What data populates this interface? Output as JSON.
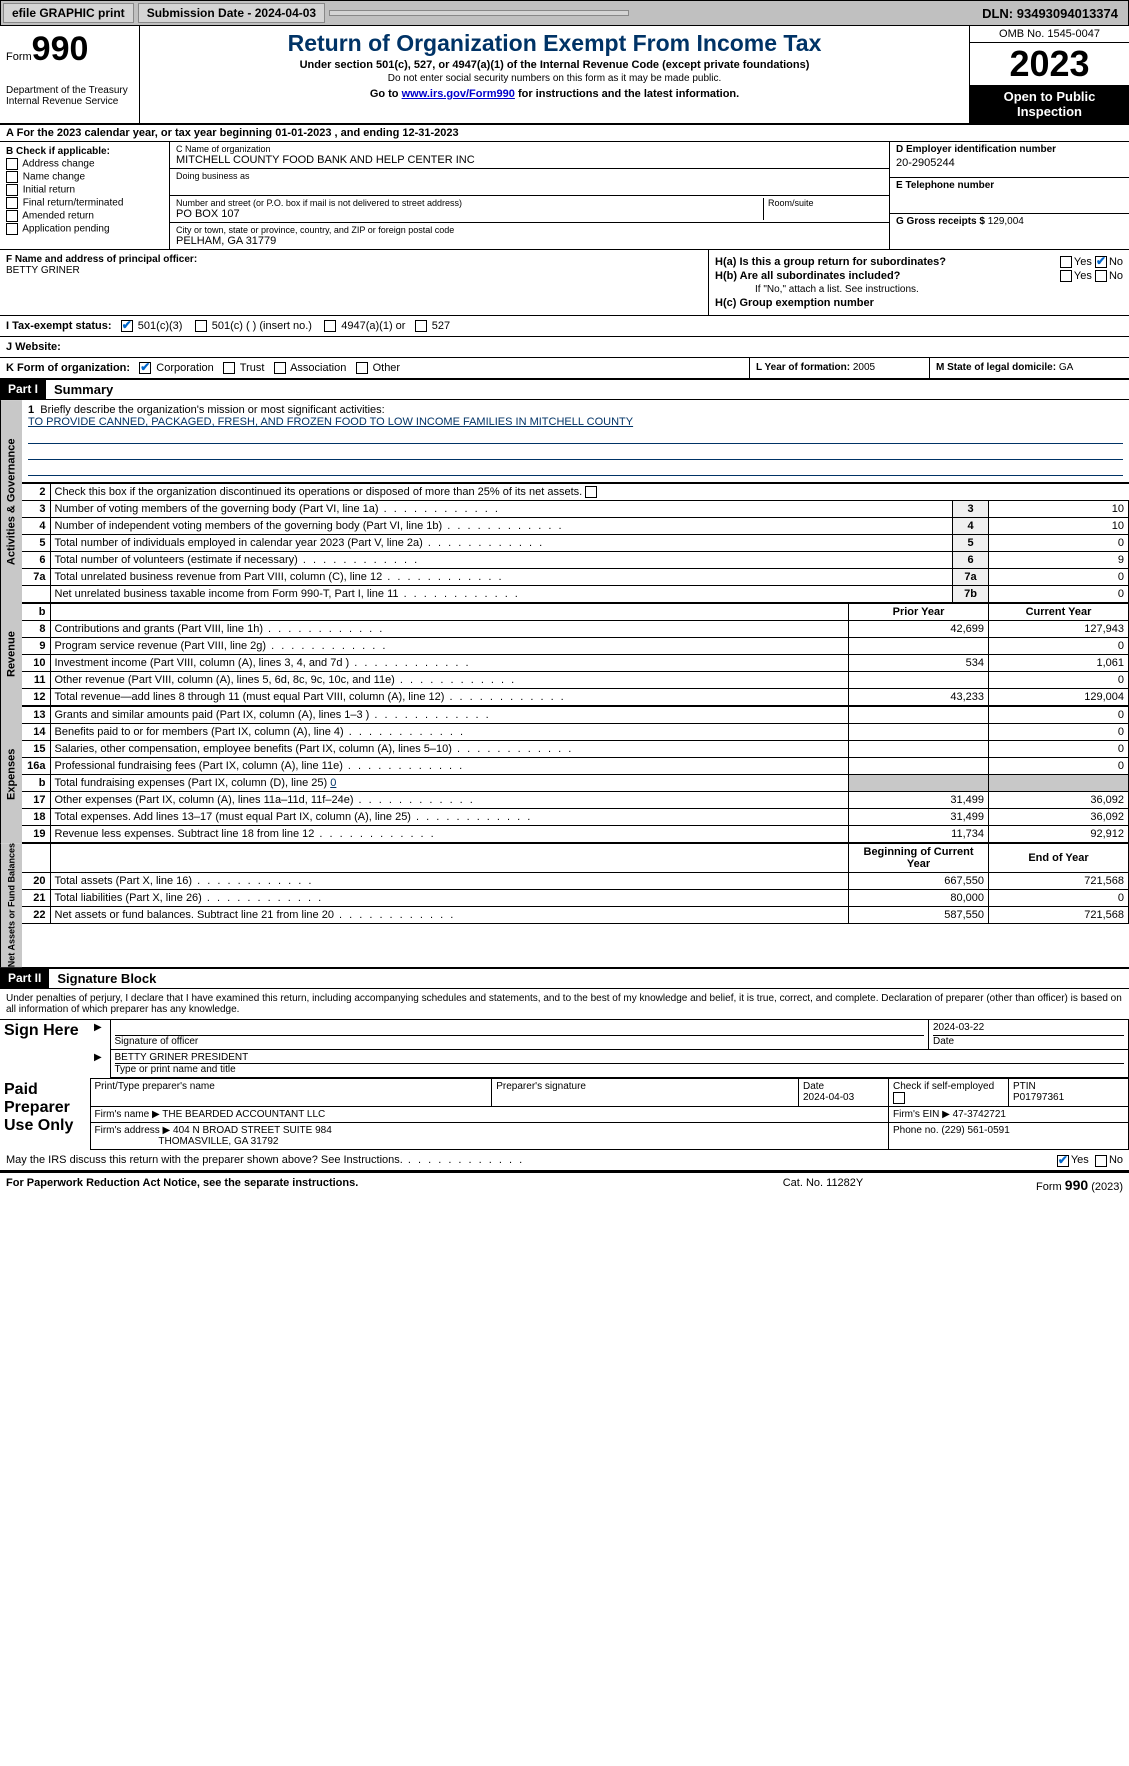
{
  "topbar": {
    "efile": "efile GRAPHIC print",
    "subdate_lbl": "Submission Date - ",
    "subdate": "2024-04-03",
    "dln_lbl": "DLN: ",
    "dln": "93493094013374"
  },
  "header": {
    "form_lbl": "Form",
    "form_num": "990",
    "dept": "Department of the Treasury",
    "irs": "Internal Revenue Service",
    "title": "Return of Organization Exempt From Income Tax",
    "sub1": "Under section 501(c), 527, or 4947(a)(1) of the Internal Revenue Code (except private foundations)",
    "sub2": "Do not enter social security numbers on this form as it may be made public.",
    "goto_pre": "Go to ",
    "goto_link": "www.irs.gov/Form990",
    "goto_post": " for instructions and the latest information.",
    "omb": "OMB No. 1545-0047",
    "year": "2023",
    "open": "Open to Public Inspection"
  },
  "row_a": "For the 2023 calendar year, or tax year beginning 01-01-2023    , and ending 12-31-2023",
  "col_b": {
    "lbl": "B Check if applicable:",
    "items": [
      "Address change",
      "Name change",
      "Initial return",
      "Final return/terminated",
      "Amended return",
      "Application pending"
    ]
  },
  "col_c": {
    "name_lbl": "C Name of organization",
    "name": "MITCHELL COUNTY FOOD BANK AND HELP CENTER INC",
    "dba_lbl": "Doing business as",
    "addr_lbl": "Number and street (or P.O. box if mail is not delivered to street address)",
    "addr": "PO BOX 107",
    "room_lbl": "Room/suite",
    "city_lbl": "City or town, state or province, country, and ZIP or foreign postal code",
    "city": "PELHAM, GA  31779"
  },
  "col_d": {
    "ein_lbl": "D Employer identification number",
    "ein": "20-2905244",
    "tel_lbl": "E Telephone number",
    "gross_lbl": "G Gross receipts $ ",
    "gross": "129,004"
  },
  "col_f": {
    "lbl": "F  Name and address of principal officer:",
    "val": "BETTY GRINER"
  },
  "col_h": {
    "ha": "H(a)  Is this a group return for subordinates?",
    "hb": "H(b)  Are all subordinates included?",
    "hb_note": "If \"No,\" attach a list. See instructions.",
    "hc": "H(c)  Group exemption number",
    "yes": "Yes",
    "no": "No"
  },
  "row_i": {
    "lbl": "I  Tax-exempt status:",
    "opts": [
      "501(c)(3)",
      "501(c) (  ) (insert no.)",
      "4947(a)(1) or",
      "527"
    ]
  },
  "row_j": {
    "lbl": "J  Website:"
  },
  "row_k": {
    "lbl": "K Form of organization:",
    "opts": [
      "Corporation",
      "Trust",
      "Association",
      "Other"
    ],
    "l_lbl": "L Year of formation: ",
    "l_val": "2005",
    "m_lbl": "M State of legal domicile: ",
    "m_val": "GA"
  },
  "part1": {
    "hdr": "Part I",
    "title": "Summary",
    "side1": "Activities & Governance",
    "side2": "Revenue",
    "side3": "Expenses",
    "side4": "Net Assets or Fund Balances",
    "line1_lbl": "Briefly describe the organization's mission or most significant activities:",
    "line1_val": "TO PROVIDE CANNED, PACKAGED, FRESH, AND FROZEN FOOD TO LOW INCOME FAMILIES IN MITCHELL COUNTY",
    "line2": "Check this box        if the organization discontinued its operations or disposed of more than 25% of its net assets.",
    "rows_gov": [
      {
        "n": "3",
        "d": "Number of voting members of the governing body (Part VI, line 1a)",
        "ln": "3",
        "v": "10"
      },
      {
        "n": "4",
        "d": "Number of independent voting members of the governing body (Part VI, line 1b)",
        "ln": "4",
        "v": "10"
      },
      {
        "n": "5",
        "d": "Total number of individuals employed in calendar year 2023 (Part V, line 2a)",
        "ln": "5",
        "v": "0"
      },
      {
        "n": "6",
        "d": "Total number of volunteers (estimate if necessary)",
        "ln": "6",
        "v": "9"
      },
      {
        "n": "7a",
        "d": "Total unrelated business revenue from Part VIII, column (C), line 12",
        "ln": "7a",
        "v": "0"
      },
      {
        "n": "",
        "d": "Net unrelated business taxable income from Form 990-T, Part I, line 11",
        "ln": "7b",
        "v": "0"
      }
    ],
    "hdr_b": "b",
    "hdr_prior": "Prior Year",
    "hdr_curr": "Current Year",
    "rows_rev": [
      {
        "n": "8",
        "d": "Contributions and grants (Part VIII, line 1h)",
        "p": "42,699",
        "c": "127,943"
      },
      {
        "n": "9",
        "d": "Program service revenue (Part VIII, line 2g)",
        "p": "",
        "c": "0"
      },
      {
        "n": "10",
        "d": "Investment income (Part VIII, column (A), lines 3, 4, and 7d )",
        "p": "534",
        "c": "1,061"
      },
      {
        "n": "11",
        "d": "Other revenue (Part VIII, column (A), lines 5, 6d, 8c, 9c, 10c, and 11e)",
        "p": "",
        "c": "0"
      },
      {
        "n": "12",
        "d": "Total revenue—add lines 8 through 11 (must equal Part VIII, column (A), line 12)",
        "p": "43,233",
        "c": "129,004"
      }
    ],
    "rows_exp": [
      {
        "n": "13",
        "d": "Grants and similar amounts paid (Part IX, column (A), lines 1–3 )",
        "p": "",
        "c": "0"
      },
      {
        "n": "14",
        "d": "Benefits paid to or for members (Part IX, column (A), line 4)",
        "p": "",
        "c": "0"
      },
      {
        "n": "15",
        "d": "Salaries, other compensation, employee benefits (Part IX, column (A), lines 5–10)",
        "p": "",
        "c": "0"
      },
      {
        "n": "16a",
        "d": "Professional fundraising fees (Part IX, column (A), line 11e)",
        "p": "",
        "c": "0"
      }
    ],
    "row_16b_n": "b",
    "row_16b_d": "Total fundraising expenses (Part IX, column (D), line 25) ",
    "row_16b_v": "0",
    "rows_exp2": [
      {
        "n": "17",
        "d": "Other expenses (Part IX, column (A), lines 11a–11d, 11f–24e)",
        "p": "31,499",
        "c": "36,092"
      },
      {
        "n": "18",
        "d": "Total expenses. Add lines 13–17 (must equal Part IX, column (A), line 25)",
        "p": "31,499",
        "c": "36,092"
      },
      {
        "n": "19",
        "d": "Revenue less expenses. Subtract line 18 from line 12",
        "p": "11,734",
        "c": "92,912"
      }
    ],
    "hdr_begin": "Beginning of Current Year",
    "hdr_end": "End of Year",
    "rows_net": [
      {
        "n": "20",
        "d": "Total assets (Part X, line 16)",
        "p": "667,550",
        "c": "721,568"
      },
      {
        "n": "21",
        "d": "Total liabilities (Part X, line 26)",
        "p": "80,000",
        "c": "0"
      },
      {
        "n": "22",
        "d": "Net assets or fund balances. Subtract line 21 from line 20",
        "p": "587,550",
        "c": "721,568"
      }
    ]
  },
  "part2": {
    "hdr": "Part II",
    "title": "Signature Block",
    "decl": "Under penalties of perjury, I declare that I have examined this return, including accompanying schedules and statements, and to the best of my knowledge and belief, it is true, correct, and complete. Declaration of preparer (other than officer) is based on all information of which preparer has any knowledge."
  },
  "sign": {
    "here": "Sign Here",
    "sig_lbl": "Signature of officer",
    "date_lbl": "Date",
    "date": "2024-03-22",
    "name": "BETTY GRINER  PRESIDENT",
    "type_lbl": "Type or print name and title"
  },
  "paid": {
    "hdr": "Paid Preparer Use Only",
    "print_lbl": "Print/Type preparer's name",
    "sig_lbl": "Preparer's signature",
    "date_lbl": "Date",
    "date": "2024-04-03",
    "check_lbl": "Check         if self-employed",
    "ptin_lbl": "PTIN",
    "ptin": "P01797361",
    "firm_name_lbl": "Firm's name    ",
    "firm_name": "THE BEARDED ACCOUNTANT LLC",
    "firm_ein_lbl": "Firm's EIN  ",
    "firm_ein": "47-3742721",
    "firm_addr_lbl": "Firm's address ",
    "firm_addr1": "404 N BROAD STREET SUITE 984",
    "firm_addr2": "THOMASVILLE, GA  31792",
    "phone_lbl": "Phone no. ",
    "phone": "(229) 561-0591"
  },
  "discuss": {
    "q": "May the IRS discuss this return with the preparer shown above? See Instructions.",
    "yes": "Yes",
    "no": "No"
  },
  "footer": {
    "l": "For Paperwork Reduction Act Notice, see the separate instructions.",
    "m": "Cat. No. 11282Y",
    "r_pre": "Form ",
    "r_form": "990",
    "r_post": " (2023)"
  }
}
